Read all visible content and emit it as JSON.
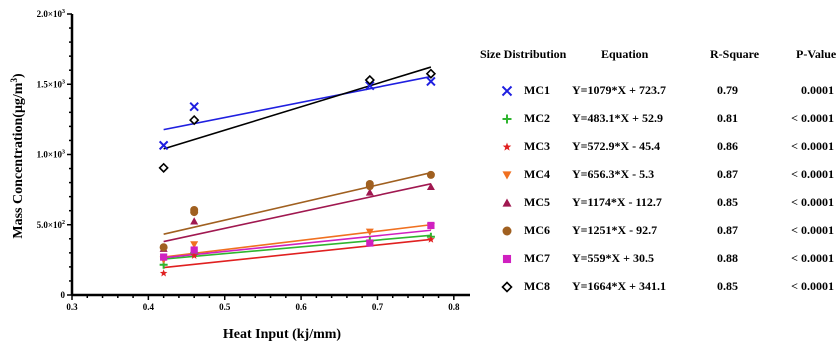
{
  "chart_data": {
    "type": "scatter",
    "xlabel": "Heat Input (kj/mm)",
    "ylabel_main": "Mass Concentration(μg/m",
    "ylabel_sup": "3",
    "ylabel_close": ")",
    "xlim": [
      0.3,
      0.85
    ],
    "ylim": [
      0,
      2000
    ],
    "xticks": [
      {
        "value": 0.3,
        "label": "0.3"
      },
      {
        "value": 0.4,
        "label": "0.4"
      },
      {
        "value": 0.5,
        "label": "0.5"
      },
      {
        "value": 0.6,
        "label": "0.6"
      },
      {
        "value": 0.7,
        "label": "0.7"
      },
      {
        "value": 0.8,
        "label": "0.8"
      }
    ],
    "yticks": [
      {
        "value": 0,
        "label": "0",
        "sup": ""
      },
      {
        "value": 500,
        "label": "5.0×10",
        "sup": "2"
      },
      {
        "value": 1000,
        "label": "1.0×10",
        "sup": "3"
      },
      {
        "value": 1500,
        "label": "1.5×10",
        "sup": "3"
      },
      {
        "value": 2000,
        "label": "2.0×10",
        "sup": "3"
      }
    ],
    "fit_range": [
      0.42,
      0.77
    ],
    "series": [
      {
        "name": "MC1",
        "marker": "x",
        "color": "#1f1fe0",
        "slope": 1079,
        "intercept": 723.7,
        "points": [
          [
            0.42,
            1065
          ],
          [
            0.46,
            1340
          ],
          [
            0.69,
            1490
          ],
          [
            0.77,
            1520
          ]
        ]
      },
      {
        "name": "MC2",
        "marker": "plus",
        "color": "#2fb52f",
        "slope": 483.1,
        "intercept": 52.9,
        "points": [
          [
            0.42,
            215
          ],
          [
            0.46,
            300
          ],
          [
            0.69,
            385
          ],
          [
            0.77,
            415
          ]
        ]
      },
      {
        "name": "MC3",
        "marker": "star",
        "color": "#e02020",
        "slope": 572.9,
        "intercept": -45.4,
        "points": [
          [
            0.42,
            155
          ],
          [
            0.46,
            280
          ],
          [
            0.69,
            370
          ],
          [
            0.77,
            395
          ]
        ]
      },
      {
        "name": "MC4",
        "marker": "triangle-down",
        "color": "#f07020",
        "slope": 656.3,
        "intercept": -5.3,
        "points": [
          [
            0.42,
            250
          ],
          [
            0.46,
            360
          ],
          [
            0.69,
            450
          ],
          [
            0.77,
            490
          ]
        ]
      },
      {
        "name": "MC5",
        "marker": "triangle-up",
        "color": "#a01850",
        "slope": 1174,
        "intercept": -112.7,
        "points": [
          [
            0.42,
            330
          ],
          [
            0.46,
            525
          ],
          [
            0.69,
            730
          ],
          [
            0.77,
            770
          ]
        ]
      },
      {
        "name": "MC6",
        "marker": "circle",
        "color": "#a06020",
        "slope": 1251,
        "intercept": -92.7,
        "points": [
          [
            0.42,
            340
          ],
          [
            0.46,
            590
          ],
          [
            0.46,
            605
          ],
          [
            0.69,
            775
          ],
          [
            0.69,
            790
          ],
          [
            0.77,
            855
          ]
        ]
      },
      {
        "name": "MC7",
        "marker": "square",
        "color": "#d020c0",
        "slope": 559,
        "intercept": 30.5,
        "points": [
          [
            0.42,
            270
          ],
          [
            0.46,
            320
          ],
          [
            0.69,
            370
          ],
          [
            0.77,
            495
          ]
        ]
      },
      {
        "name": "MC8",
        "marker": "diamond-open",
        "color": "#000000",
        "slope": 1664,
        "intercept": 341.1,
        "points": [
          [
            0.42,
            905
          ],
          [
            0.46,
            1245
          ],
          [
            0.69,
            1530
          ],
          [
            0.77,
            1575
          ]
        ]
      }
    ]
  },
  "table": {
    "headers": {
      "size_distribution": "Size Distribution",
      "equation": "Equation",
      "r_square": "R-Square",
      "p_value": "P-Value"
    },
    "rows": [
      {
        "name": "MC1",
        "equation": "Y=1079*X + 723.7",
        "r_square": "0.79",
        "p_value": "0.0001"
      },
      {
        "name": "MC2",
        "equation": "Y=483.1*X + 52.9",
        "r_square": "0.81",
        "p_value": "< 0.0001"
      },
      {
        "name": "MC3",
        "equation": "Y=572.9*X - 45.4",
        "r_square": "0.86",
        "p_value": "< 0.0001"
      },
      {
        "name": "MC4",
        "equation": "Y=656.3*X - 5.3",
        "r_square": "0.87",
        "p_value": "< 0.0001"
      },
      {
        "name": "MC5",
        "equation": "Y=1174*X - 112.7",
        "r_square": "0.85",
        "p_value": "< 0.0001"
      },
      {
        "name": "MC6",
        "equation": "Y=1251*X - 92.7",
        "r_square": "0.87",
        "p_value": "< 0.0001"
      },
      {
        "name": "MC7",
        "equation": "Y=559*X + 30.5",
        "r_square": "0.88",
        "p_value": "< 0.0001"
      },
      {
        "name": "MC8",
        "equation": "Y=1664*X + 341.1",
        "r_square": "0.85",
        "p_value": "< 0.0001"
      }
    ]
  }
}
